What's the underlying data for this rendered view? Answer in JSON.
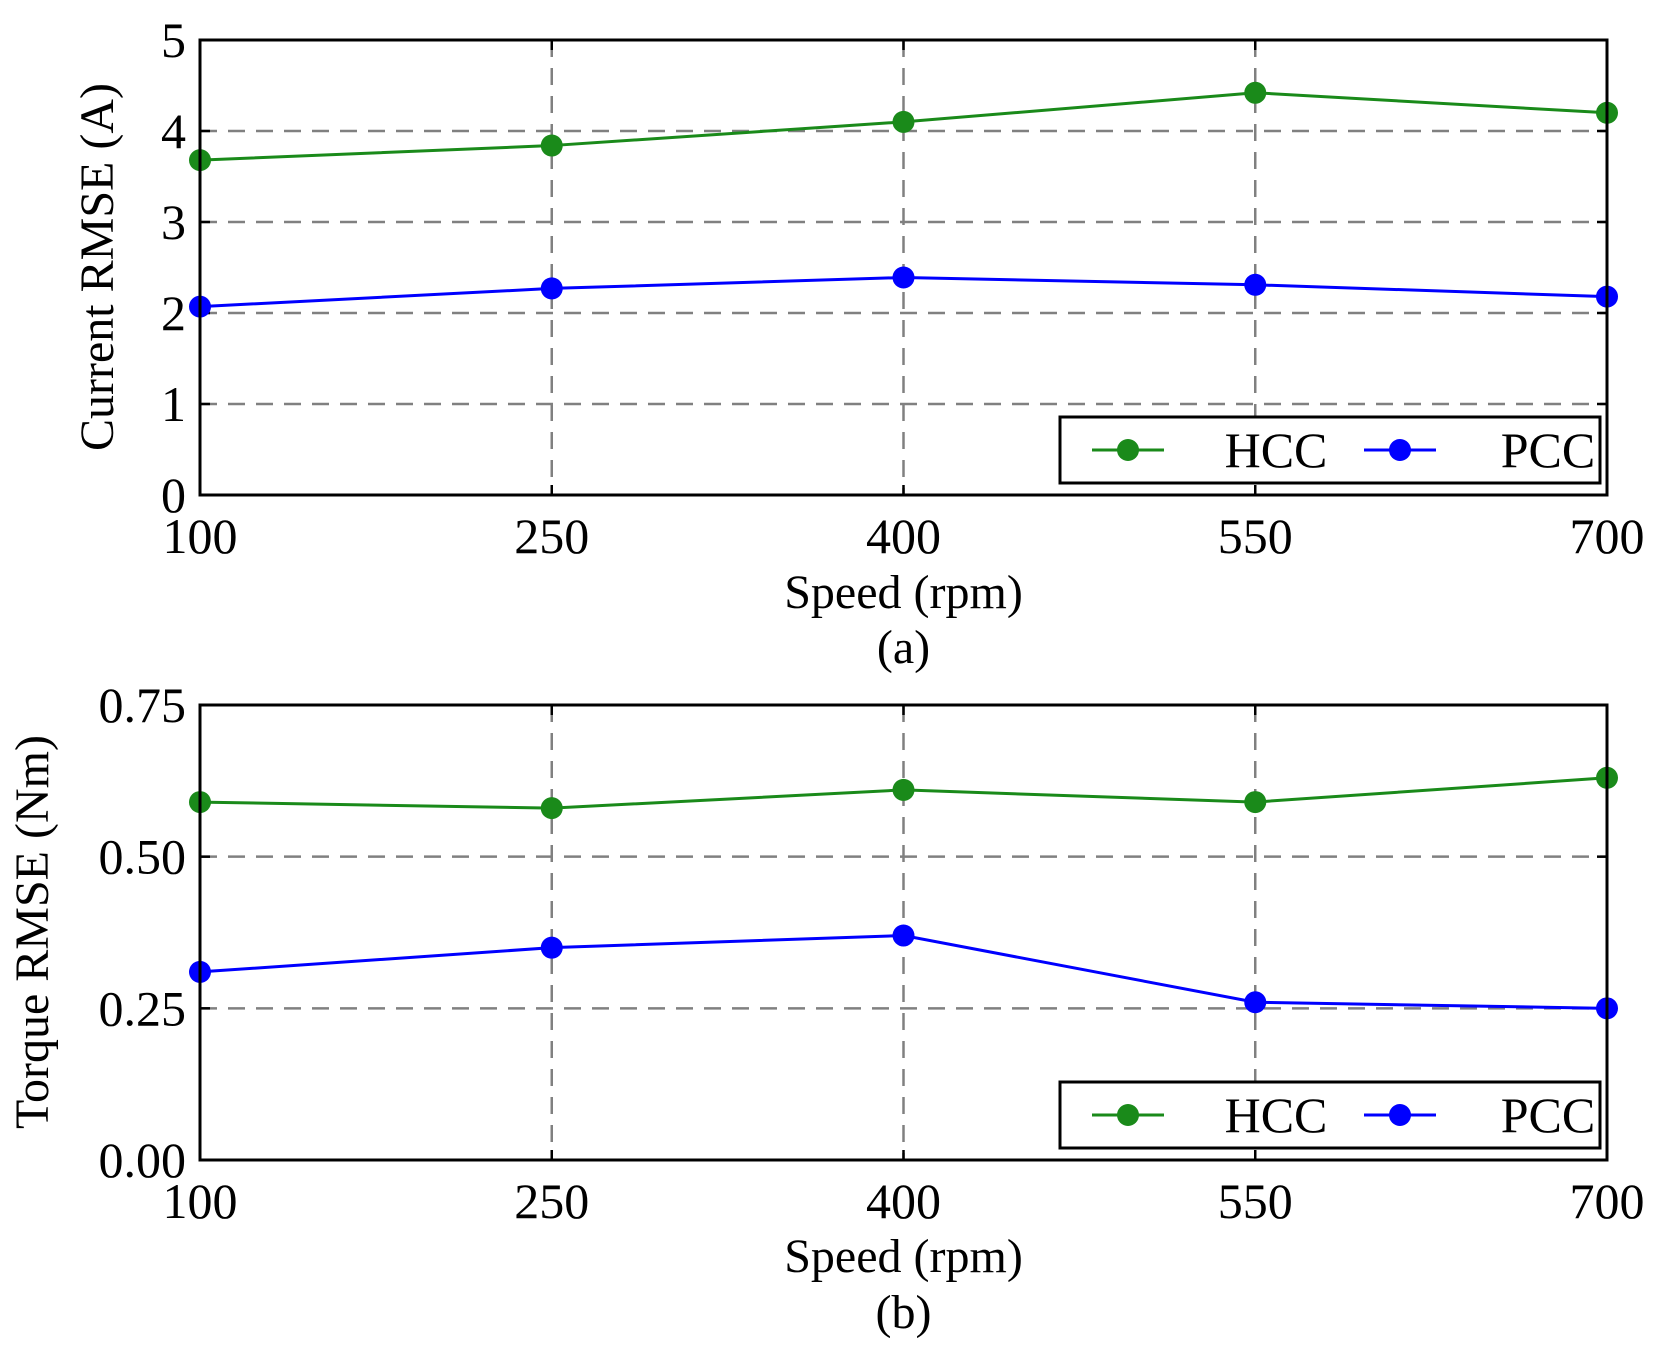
{
  "chart_data": [
    {
      "type": "line",
      "panel": "(a)",
      "caption": "(a)",
      "xlabel": "Speed (rpm)",
      "ylabel": "Current RMSE (A)",
      "x": [
        100,
        250,
        400,
        550,
        700
      ],
      "x_tick_labels": [
        "100",
        "250",
        "400",
        "550",
        "700"
      ],
      "xlim": [
        100,
        700
      ],
      "ylim": [
        0,
        5
      ],
      "y_ticks": [
        0,
        1,
        2,
        3,
        4,
        5
      ],
      "y_tick_labels": [
        "0",
        "1",
        "2",
        "3",
        "4",
        "5"
      ],
      "grid": true,
      "legend_position": "bottom-right",
      "series": [
        {
          "name": "HCC",
          "color": "#1a8a1a",
          "values": [
            3.68,
            3.84,
            4.1,
            4.42,
            4.2
          ]
        },
        {
          "name": "PCC",
          "color": "#0000ff",
          "values": [
            2.07,
            2.27,
            2.39,
            2.31,
            2.18
          ]
        }
      ]
    },
    {
      "type": "line",
      "panel": "(b)",
      "caption": "(b)",
      "xlabel": "Speed (rpm)",
      "ylabel": "Torque RMSE (Nm)",
      "x": [
        100,
        250,
        400,
        550,
        700
      ],
      "x_tick_labels": [
        "100",
        "250",
        "400",
        "550",
        "700"
      ],
      "xlim": [
        100,
        700
      ],
      "ylim": [
        0,
        0.75
      ],
      "y_ticks": [
        0,
        0.25,
        0.5,
        0.75
      ],
      "y_tick_labels": [
        "0.00",
        "0.25",
        "0.50",
        "0.75"
      ],
      "grid": true,
      "legend_position": "bottom-right",
      "series": [
        {
          "name": "HCC",
          "color": "#1a8a1a",
          "values": [
            0.59,
            0.58,
            0.61,
            0.59,
            0.63
          ]
        },
        {
          "name": "PCC",
          "color": "#0000ff",
          "values": [
            0.31,
            0.35,
            0.37,
            0.26,
            0.25
          ]
        }
      ]
    }
  ]
}
